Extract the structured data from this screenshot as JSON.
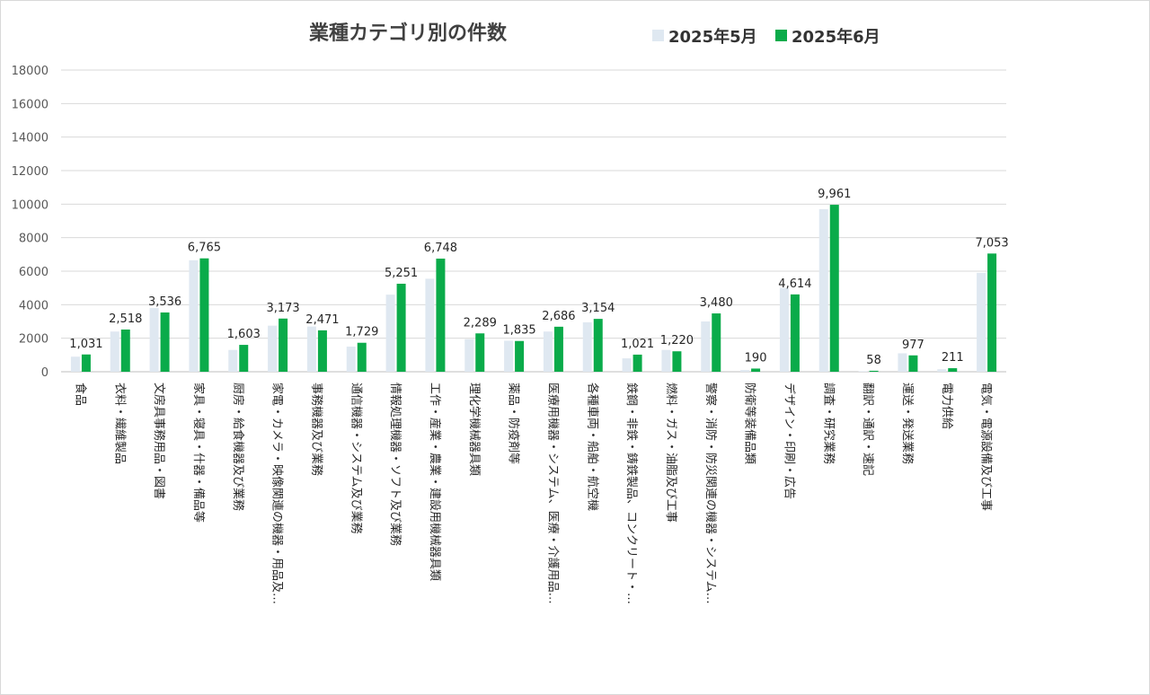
{
  "chart_data": {
    "type": "bar",
    "title": "業種カテゴリ別の件数",
    "xlabel": "",
    "ylabel": "",
    "ylim": [
      0,
      18000
    ],
    "yticks": [
      0,
      2000,
      4000,
      6000,
      8000,
      10000,
      12000,
      14000,
      16000,
      18000
    ],
    "ytick_labels": [
      "0",
      "2000",
      "4000",
      "6000",
      "8000",
      "10000",
      "12000",
      "14000",
      "16000",
      "18000"
    ],
    "grid": true,
    "legend_position": "top-right",
    "categories": [
      "食品",
      "衣料・繊維製品",
      "文房具事務用品・図書",
      "家具・寝具・什器・備品等",
      "厨房・給食機器及び業務",
      "家電・カメラ・映像関連の機器・用品及…",
      "事務機器及び業務",
      "通信機器・システム及び業務",
      "情報処理機器・ソフト及び業務",
      "工作・産業・農業・建設用機械器具類",
      "理化学機械器具類",
      "薬品・防疫剤等",
      "医療用機器・システム、医療・介護用品…",
      "各種車両・船舶・航空機",
      "鉄鋼・非鉄・鋳鉄製品、コンクリート・…",
      "燃料・ガス・油脂及び工事",
      "警察・消防・防災関連の機器・システム…",
      "防衛等装備品類",
      "デザイン・印刷・広告",
      "調査・研究業務",
      "翻訳・通訳・速記",
      "運送・発送業務",
      "電力供給",
      "電気・電源設備及び工事"
    ],
    "series": [
      {
        "name": "2025年5月",
        "color": "#dfe8f1",
        "values": [
          900,
          2400,
          3800,
          6650,
          1300,
          2750,
          2700,
          1500,
          4600,
          5550,
          1950,
          1850,
          2400,
          2950,
          800,
          1300,
          3000,
          100,
          5000,
          9700,
          30,
          1100,
          150,
          5900
        ],
        "labels": []
      },
      {
        "name": "2025年6月",
        "color": "#0aab4a",
        "values": [
          1031,
          2518,
          3536,
          6765,
          1603,
          3173,
          2471,
          1729,
          5251,
          6748,
          2289,
          1835,
          2686,
          3154,
          1021,
          1220,
          3480,
          190,
          4614,
          9961,
          58,
          977,
          211,
          7053
        ],
        "labels": [
          "1,031",
          "2,518",
          "3,536",
          "6,765",
          "1,603",
          "3,173",
          "2,471",
          "1,729",
          "5,251",
          "6,748",
          "2,289",
          "1,835",
          "2,686",
          "3,154",
          "1,021",
          "1,220",
          "3,480",
          "190",
          "4,614",
          "9,961",
          "58",
          "977",
          "211",
          "7,053"
        ]
      }
    ]
  }
}
